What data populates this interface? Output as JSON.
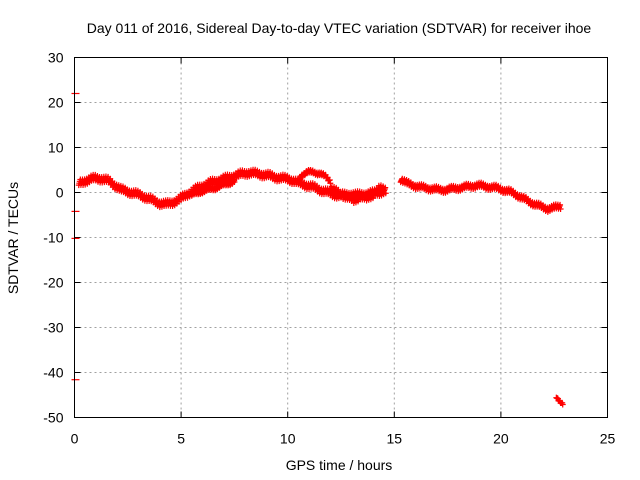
{
  "chart_data": {
    "type": "scatter",
    "title": "Day 011 of 2016, Sidereal Day-to-day VTEC variation (SDTVAR) for receiver ihoe",
    "xlabel": "GPS time / hours",
    "ylabel": "SDTVAR / TECUs",
    "xlim": [
      0,
      25
    ],
    "ylim": [
      -50,
      30
    ],
    "xticks": [
      0,
      5,
      10,
      15,
      20,
      25
    ],
    "yticks": [
      30,
      20,
      10,
      0,
      -10,
      -20,
      -30,
      -40,
      -50
    ],
    "grid": true,
    "series": [
      {
        "name": "SDTVAR",
        "color": "#ff0000",
        "marker": "plus",
        "bands": [
          {
            "x": [
              0.2,
              0.5,
              0.8,
              1.0,
              1.3,
              1.6,
              1.9,
              2.2,
              2.5,
              2.8,
              3.1,
              3.4,
              3.7,
              4.0,
              4.3,
              4.6,
              4.9,
              5.2,
              5.5,
              5.8,
              6.1,
              6.4,
              6.7,
              7.0,
              7.3,
              7.6,
              7.9,
              8.2,
              8.5,
              8.8,
              9.1,
              9.4,
              9.7,
              10.0,
              10.3,
              10.6,
              10.9,
              11.2,
              11.5,
              11.8,
              12.1,
              12.4,
              12.7,
              13.0,
              13.3,
              13.6,
              13.9,
              14.2,
              14.5
            ],
            "y": [
              2.0,
              2.6,
              3.0,
              3.2,
              3.0,
              2.6,
              1.6,
              0.6,
              0.2,
              -0.2,
              -0.6,
              -1.2,
              -1.8,
              -2.4,
              -2.6,
              -2.2,
              -1.6,
              -0.6,
              0.2,
              1.0,
              1.6,
              2.2,
              2.6,
              3.0,
              3.4,
              3.8,
              4.2,
              4.4,
              4.2,
              4.0,
              3.8,
              3.4,
              3.2,
              3.0,
              2.6,
              2.0,
              1.6,
              1.2,
              0.6,
              0.2,
              -0.4,
              -0.6,
              -0.6,
              -0.4,
              -0.6,
              -0.4,
              -0.2,
              0.0,
              0.2
            ],
            "spread": 1.2
          },
          {
            "x": [
              5.5,
              5.9,
              6.3,
              6.7,
              7.1,
              7.5
            ],
            "y": [
              -0.6,
              0.2,
              0.6,
              1.2,
              1.8,
              2.6
            ],
            "spread": 0.6
          },
          {
            "x": [
              10.6,
              10.9,
              11.2,
              11.5,
              11.8,
              12.0
            ],
            "y": [
              3.8,
              4.4,
              4.6,
              4.2,
              3.4,
              2.6
            ],
            "spread": 0.6
          },
          {
            "x": [
              12.0,
              12.4,
              12.8,
              13.1,
              13.4,
              13.7,
              14.0,
              14.3,
              14.6
            ],
            "y": [
              1.0,
              -0.2,
              -1.0,
              -1.8,
              -0.8,
              -1.4,
              -0.4,
              0.8,
              0.6
            ],
            "spread": 1.2
          },
          {
            "x": [
              15.3,
              15.6,
              15.9,
              16.2,
              16.5,
              16.8,
              17.1,
              17.4,
              17.7,
              18.0,
              18.3,
              18.6,
              18.9,
              19.2,
              19.5,
              19.8,
              20.1,
              20.4,
              20.7,
              21.0,
              21.3,
              21.6,
              21.9,
              22.2,
              22.5,
              22.8
            ],
            "y": [
              3.0,
              2.0,
              1.6,
              1.2,
              1.0,
              0.8,
              0.6,
              0.6,
              0.8,
              1.0,
              1.2,
              1.4,
              1.6,
              1.4,
              1.2,
              1.0,
              0.6,
              0.2,
              -0.4,
              -1.2,
              -2.0,
              -2.6,
              -3.2,
              -3.6,
              -3.4,
              -3.0
            ],
            "spread": 0.9
          },
          {
            "x": [
              22.6,
              22.7,
              22.8,
              22.9
            ],
            "y": [
              -45.4,
              -45.9,
              -46.4,
              -46.9
            ],
            "spread": 0.3
          }
        ],
        "isolated_points": [
          {
            "x": 0.0,
            "y": 22.0
          },
          {
            "x": 0.0,
            "y": -4.2
          },
          {
            "x": 0.0,
            "y": -10.2
          },
          {
            "x": 0.0,
            "y": -41.6
          }
        ]
      }
    ]
  }
}
